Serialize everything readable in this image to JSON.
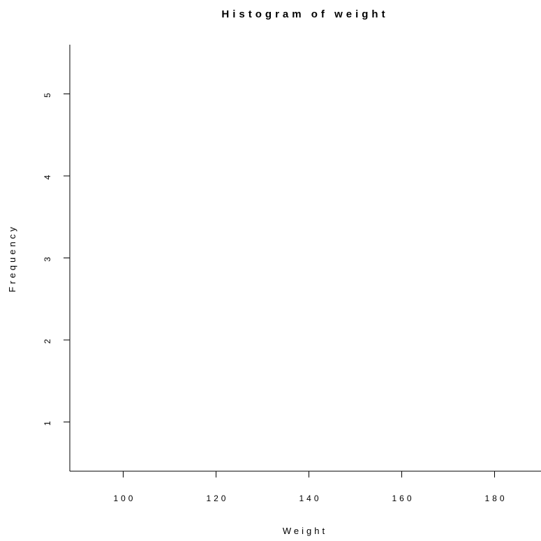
{
  "chart_data": {
    "type": "bar",
    "title": "Histogram of weight",
    "xlabel": "Weight",
    "ylabel": "Frequency",
    "x_ticks": [
      100,
      120,
      140,
      160,
      180
    ],
    "y_ticks": [
      1,
      2,
      3,
      4,
      5
    ],
    "xlim": [
      88.5,
      190
    ],
    "ylim": [
      0.4,
      5.6
    ],
    "values": [],
    "grid": false,
    "legend": "none"
  }
}
